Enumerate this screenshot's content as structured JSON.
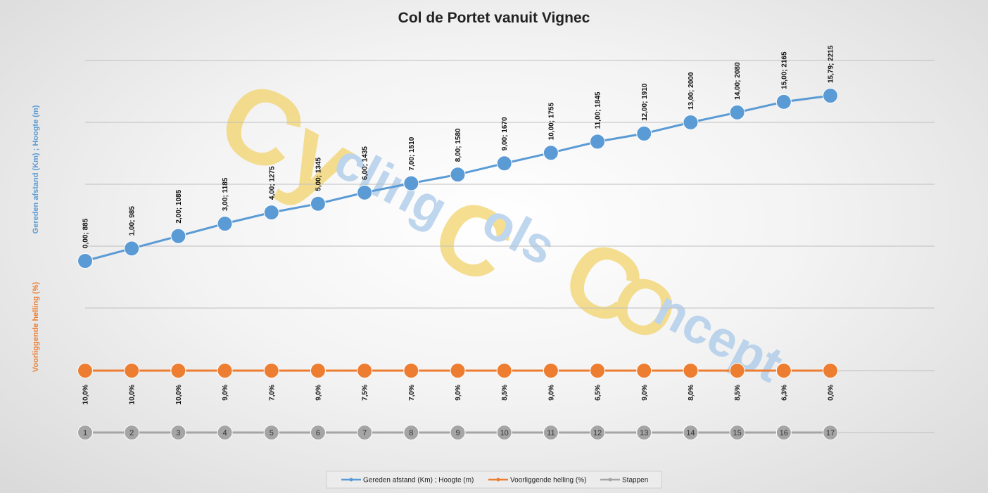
{
  "chart_data": {
    "type": "line",
    "title": "Col de Portet vanuit Vignec",
    "y_axis_titles": {
      "primary": "Gereden afstand (Km) ; Hoogte (m)",
      "secondary": "Voorliggende helling (%)"
    },
    "grid": true,
    "legend_position": "bottom",
    "categories": [
      1,
      2,
      3,
      4,
      5,
      6,
      7,
      8,
      9,
      10,
      11,
      12,
      13,
      14,
      15,
      16,
      17
    ],
    "series": [
      {
        "name": "Gereden afstand (Km) ; Hoogte (m)",
        "color": "#5b9bd5",
        "distance_km": [
          0.0,
          1.0,
          2.0,
          3.0,
          4.0,
          5.0,
          6.0,
          7.0,
          8.0,
          9.0,
          10.0,
          11.0,
          12.0,
          13.0,
          14.0,
          15.0,
          15.79
        ],
        "altitude_m": [
          885,
          985,
          1085,
          1185,
          1275,
          1345,
          1435,
          1510,
          1580,
          1670,
          1755,
          1845,
          1910,
          2000,
          2080,
          2165,
          2215
        ],
        "labels": [
          "0,00; 885",
          "1,00; 985",
          "2,00; 1085",
          "3,00; 1185",
          "4,00; 1275",
          "5,00; 1345",
          "6,00; 1435",
          "7,00; 1510",
          "8,00; 1580",
          "9,00; 1670",
          "10,00; 1755",
          "11,00; 1845",
          "12,00; 1910",
          "13,00; 2000",
          "14,00; 2080",
          "15,00; 2165",
          "15,79; 2215"
        ]
      },
      {
        "name": "Voorliggende helling (%)",
        "color": "#ed7d31",
        "values_pct": [
          10.0,
          10.0,
          10.0,
          9.0,
          7.0,
          9.0,
          7.5,
          7.0,
          9.0,
          8.5,
          9.0,
          6.5,
          9.0,
          8.0,
          8.5,
          6.3,
          0.0
        ],
        "labels": [
          "10,0%",
          "10,0%",
          "10,0%",
          "9,0%",
          "7,0%",
          "9,0%",
          "7,5%",
          "7,0%",
          "9,0%",
          "8,5%",
          "9,0%",
          "6,5%",
          "9,0%",
          "8,0%",
          "8,5%",
          "6,3%",
          "0,0%"
        ]
      },
      {
        "name": "Stappen",
        "color": "#a5a5a5",
        "labels": [
          "1",
          "2",
          "3",
          "4",
          "5",
          "6",
          "7",
          "8",
          "9",
          "10",
          "11",
          "12",
          "13",
          "14",
          "15",
          "16",
          "17"
        ]
      }
    ]
  },
  "watermark": {
    "parts": [
      "Cy",
      "cling",
      "C",
      "ols",
      "C",
      "O",
      "ncept"
    ],
    "color_yellow": "#f2d36b",
    "color_blue": "#a9c8e8"
  }
}
